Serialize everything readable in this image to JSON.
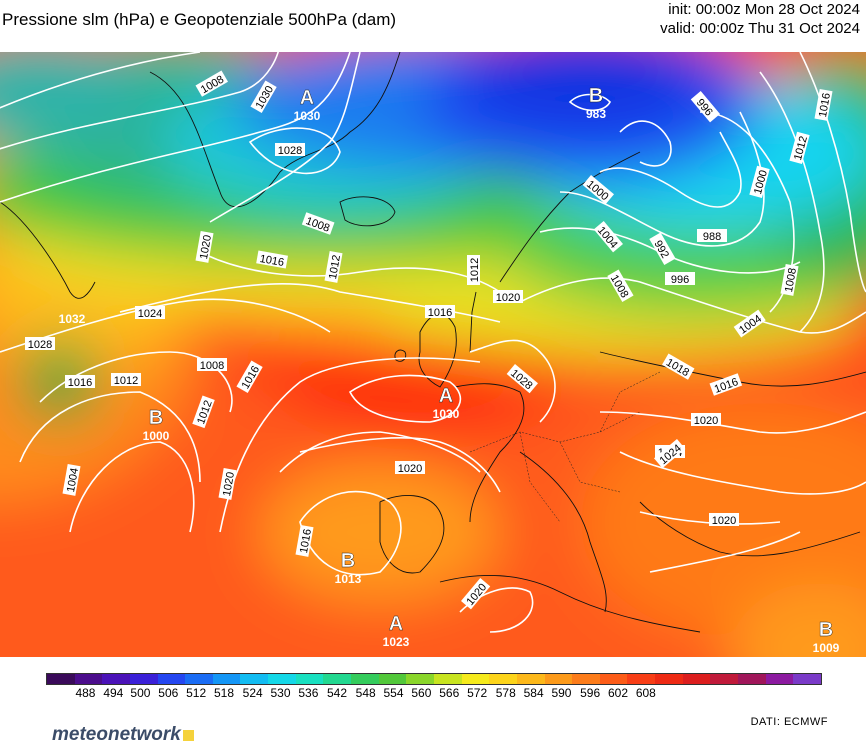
{
  "title": "Pressione slm (hPa) e Geopotenziale 500hPa (dam)",
  "init_label": "init: 00:00z Mon 28 Oct 2024",
  "valid_label": "valid: 00:00z Thu 31 Oct 2024",
  "legend": {
    "ticks": [
      "488",
      "494",
      "500",
      "506",
      "512",
      "518",
      "524",
      "530",
      "536",
      "542",
      "548",
      "554",
      "560",
      "566",
      "572",
      "578",
      "584",
      "590",
      "596",
      "602",
      "608"
    ],
    "unit": "dam"
  },
  "pressure_systems": [
    {
      "type": "A",
      "value": "1030"
    },
    {
      "type": "B",
      "value": "983"
    },
    {
      "type": "",
      "value": "1032"
    },
    {
      "type": "B",
      "value": "1000"
    },
    {
      "type": "A",
      "value": "1030"
    },
    {
      "type": "B",
      "value": "1013"
    },
    {
      "type": "A",
      "value": "1023"
    },
    {
      "type": "B",
      "value": "1009"
    }
  ],
  "isobar_labels": [
    "1008",
    "1030",
    "1028",
    "1008",
    "1016",
    "1012",
    "1012",
    "1016",
    "1020",
    "1020",
    "1024",
    "1028",
    "1016",
    "1012",
    "1008",
    "1012",
    "1016",
    "1024",
    "1020",
    "1004",
    "1020",
    "1016",
    "1020",
    "1000",
    "1004",
    "992",
    "1008",
    "996",
    "1000",
    "988",
    "996",
    "1012",
    "1016",
    "1008",
    "1004",
    "1018",
    "1016",
    "1020",
    "1024",
    "1020",
    "1028"
  ],
  "logo": "meteonetwork",
  "credit": "DATI:  ECMWF"
}
